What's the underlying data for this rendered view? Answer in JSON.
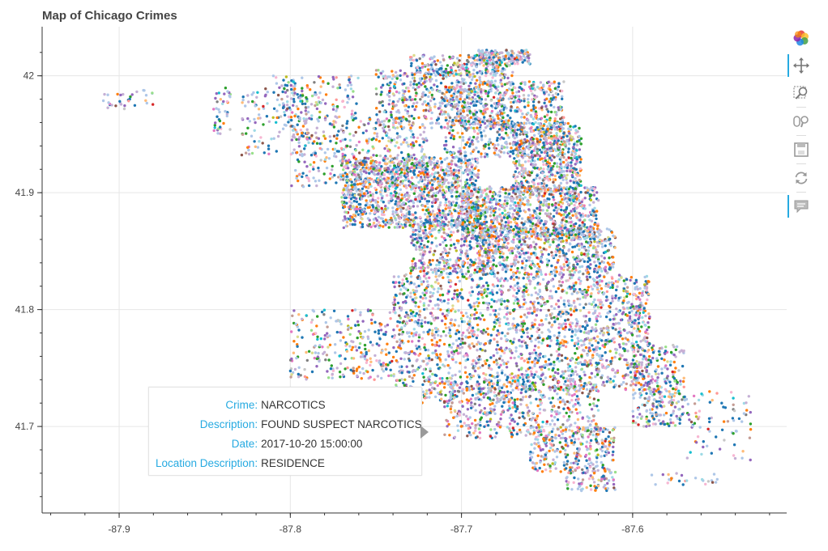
{
  "page": {
    "title": "Map of Chicago Crimes"
  },
  "toolbar": {
    "tools": [
      {
        "name": "bokeh-logo-icon",
        "active": false
      },
      {
        "name": "pan-icon",
        "active": true
      },
      {
        "name": "box-zoom-icon",
        "active": false
      },
      {
        "name": "wheel-zoom-icon",
        "active": false
      },
      {
        "name": "save-icon",
        "active": false
      },
      {
        "name": "reset-icon",
        "active": false
      },
      {
        "name": "hover-icon",
        "active": true
      }
    ]
  },
  "tooltip": {
    "rows": [
      {
        "key": "Crime:",
        "value": "NARCOTICS"
      },
      {
        "key": "Description:",
        "value": "FOUND SUSPECT NARCOTICS"
      },
      {
        "key": "Date:",
        "value": "2017-10-20 15:00:00"
      },
      {
        "key": "Location Description:",
        "value": "RESIDENCE"
      }
    ]
  },
  "chart_data": {
    "type": "scatter",
    "title": "Map of Chicago Crimes",
    "xlabel": "",
    "ylabel": "",
    "xlim": [
      -87.945,
      -87.51
    ],
    "ylim": [
      41.626,
      42.042
    ],
    "xticks": [
      -87.9,
      -87.8,
      -87.7,
      -87.6
    ],
    "yticks": [
      41.7,
      41.8,
      41.9,
      42
    ],
    "xtick_labels": [
      "-87.9",
      "-87.8",
      "-87.7",
      "-87.6"
    ],
    "ytick_labels": [
      "41.7",
      "41.8",
      "41.9",
      "42"
    ],
    "grid": true,
    "palette": [
      "#1f77b4",
      "#aec7e8",
      "#ff7f0e",
      "#ffbb78",
      "#2ca02c",
      "#98df8a",
      "#d62728",
      "#ff9896",
      "#9467bd",
      "#c5b0d5",
      "#8c564b",
      "#c49c94",
      "#e377c2",
      "#f7b6d2",
      "#7f7f7f",
      "#c7c7c7",
      "#bcbd22",
      "#dbdb8d",
      "#17becf",
      "#9edae5"
    ],
    "palette_weights": [
      14,
      16,
      7,
      3,
      5,
      2,
      1,
      2,
      8,
      10,
      2,
      3,
      3,
      4,
      2,
      2,
      1,
      1,
      1,
      4
    ],
    "point_count_per_region_unit": 1,
    "regions": [
      {
        "lon": [
          -87.845,
          -87.835
        ],
        "lat": [
          41.95,
          41.99
        ],
        "n": 40
      },
      {
        "lon": [
          -87.83,
          -87.79
        ],
        "lat": [
          41.93,
          41.99
        ],
        "n": 120
      },
      {
        "lon": [
          -87.81,
          -87.76
        ],
        "lat": [
          41.96,
          42.0
        ],
        "n": 140
      },
      {
        "lon": [
          -87.8,
          -87.72
        ],
        "lat": [
          41.905,
          41.965
        ],
        "n": 420
      },
      {
        "lon": [
          -87.77,
          -87.69
        ],
        "lat": [
          41.87,
          41.93
        ],
        "n": 1300
      },
      {
        "lon": [
          -87.75,
          -87.67
        ],
        "lat": [
          41.955,
          42.005
        ],
        "n": 550
      },
      {
        "lon": [
          -87.73,
          -87.67
        ],
        "lat": [
          42.0,
          42.018
        ],
        "n": 220
      },
      {
        "lon": [
          -87.69,
          -87.66
        ],
        "lat": [
          42.01,
          42.022
        ],
        "n": 140
      },
      {
        "lon": [
          -87.71,
          -87.64
        ],
        "lat": [
          41.93,
          41.995
        ],
        "n": 700
      },
      {
        "lon": [
          -87.67,
          -87.63
        ],
        "lat": [
          41.9,
          41.96
        ],
        "n": 560
      },
      {
        "lon": [
          -87.7,
          -87.62
        ],
        "lat": [
          41.86,
          41.905
        ],
        "n": 900
      },
      {
        "lon": [
          -87.69,
          -87.61
        ],
        "lat": [
          41.83,
          41.87
        ],
        "n": 650
      },
      {
        "lon": [
          -87.73,
          -87.68
        ],
        "lat": [
          41.83,
          41.875
        ],
        "n": 420
      },
      {
        "lon": [
          -87.8,
          -87.74
        ],
        "lat": [
          41.74,
          41.8
        ],
        "n": 260
      },
      {
        "lon": [
          -87.74,
          -87.67
        ],
        "lat": [
          41.72,
          41.83
        ],
        "n": 950
      },
      {
        "lon": [
          -87.67,
          -87.59
        ],
        "lat": [
          41.73,
          41.83
        ],
        "n": 1200
      },
      {
        "lon": [
          -87.6,
          -87.57
        ],
        "lat": [
          41.7,
          41.77
        ],
        "n": 300
      },
      {
        "lon": [
          -87.71,
          -87.62
        ],
        "lat": [
          41.69,
          41.74
        ],
        "n": 500
      },
      {
        "lon": [
          -87.66,
          -87.61
        ],
        "lat": [
          41.66,
          41.7
        ],
        "n": 280
      },
      {
        "lon": [
          -87.64,
          -87.61
        ],
        "lat": [
          41.645,
          41.665
        ],
        "n": 90
      },
      {
        "lon": [
          -87.57,
          -87.53
        ],
        "lat": [
          41.67,
          41.73
        ],
        "n": 80
      },
      {
        "lon": [
          -87.59,
          -87.55
        ],
        "lat": [
          41.65,
          41.66
        ],
        "n": 25
      },
      {
        "lon": [
          -87.91,
          -87.89
        ],
        "lat": [
          41.97,
          41.985
        ],
        "n": 18
      },
      {
        "lon": [
          -87.9,
          -87.88
        ],
        "lat": [
          41.975,
          41.988
        ],
        "n": 14
      }
    ]
  }
}
